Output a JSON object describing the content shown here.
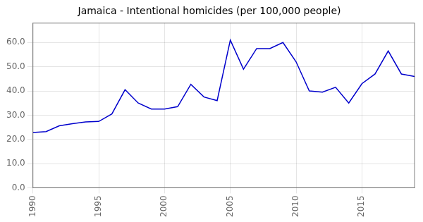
{
  "chart_data": {
    "type": "line",
    "title": "Jamaica - Intentional homicides (per 100,000 people)",
    "x": [
      1990,
      1991,
      1992,
      1993,
      1994,
      1995,
      1996,
      1997,
      1998,
      1999,
      2000,
      2001,
      2002,
      2003,
      2004,
      2005,
      2006,
      2007,
      2008,
      2009,
      2010,
      2011,
      2012,
      2013,
      2014,
      2015,
      2016,
      2017,
      2018,
      2019
    ],
    "values": [
      22.8,
      23.2,
      25.6,
      26.5,
      27.2,
      27.4,
      30.5,
      40.5,
      35.0,
      32.5,
      32.5,
      33.5,
      42.7,
      37.5,
      36.0,
      61.0,
      49.0,
      57.5,
      57.5,
      60.0,
      52.0,
      40.0,
      39.5,
      41.5,
      35.0,
      43.0,
      47.0,
      56.5,
      47.0,
      46.0
    ],
    "color": "#0000cc",
    "xlim": [
      1990,
      2019
    ],
    "ylim": [
      0.0,
      68.0
    ],
    "xticks": [
      1990,
      1995,
      2000,
      2005,
      2010,
      2015
    ],
    "yticks": [
      {
        "value": 0,
        "label": "0.0"
      },
      {
        "value": 10,
        "label": "10.0"
      },
      {
        "value": 20,
        "label": "20.0"
      },
      {
        "value": 30,
        "label": "30.0"
      },
      {
        "value": 40,
        "label": "40.0"
      },
      {
        "value": 50,
        "label": "50.0"
      },
      {
        "value": 60,
        "label": "60.0"
      }
    ],
    "grid": true
  }
}
